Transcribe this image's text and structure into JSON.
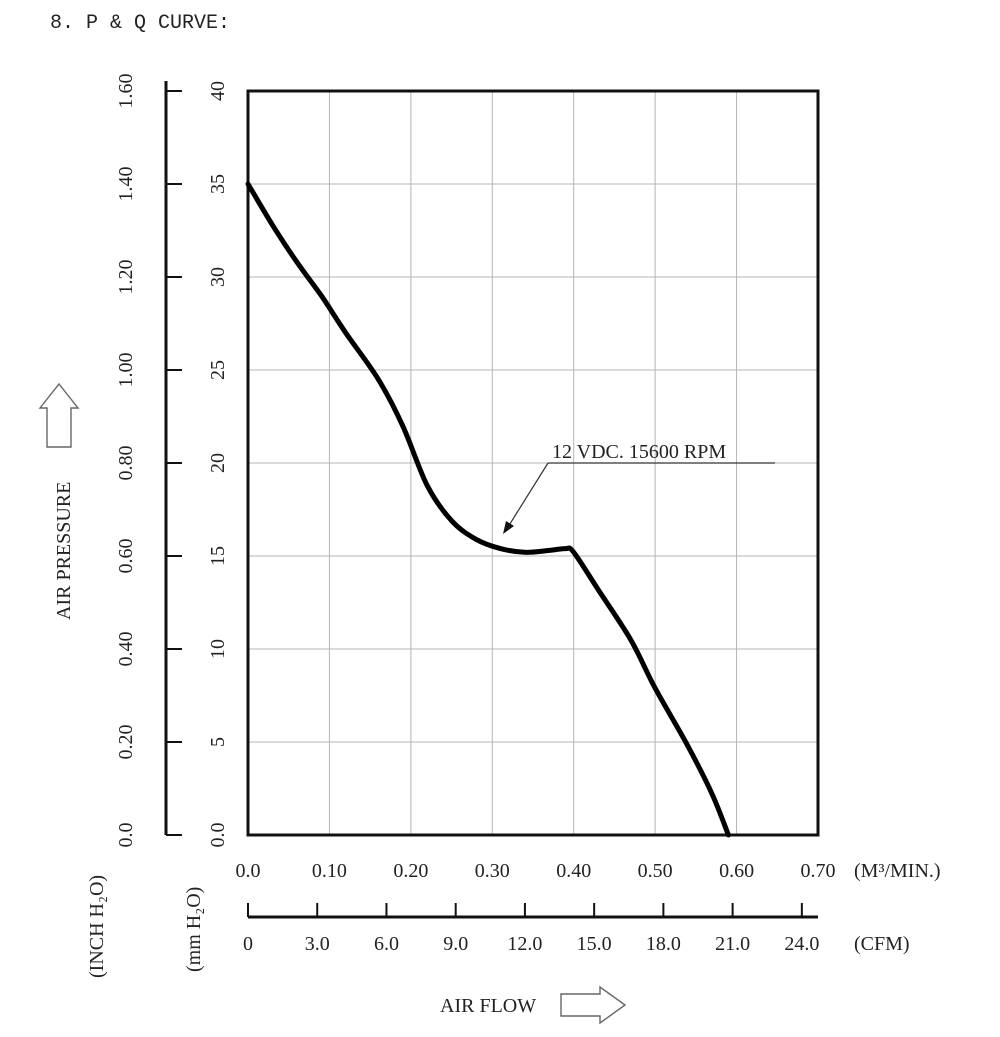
{
  "page_title": "8. P & Q CURVE:",
  "chart_data": {
    "type": "line",
    "title": "8. P & Q CURVE:",
    "ylabel": "AIR PRESSURE",
    "xlabel": "AIR FLOW",
    "y_axis_mm": {
      "unit_label": "(mm H₂O)",
      "range": [
        0,
        40
      ],
      "ticks": [
        "0.0",
        "5",
        "10",
        "15",
        "20",
        "25",
        "30",
        "35",
        "40"
      ]
    },
    "y_axis_inch": {
      "unit_label": "(INCH H₂O)",
      "range": [
        0,
        1.6
      ],
      "ticks": [
        "0.0",
        "0.20",
        "0.40",
        "0.60",
        "0.80",
        "1.00",
        "1.20",
        "1.40",
        "1.60"
      ]
    },
    "x_axis_m3": {
      "unit_label": "(M³/MIN.)",
      "range": [
        0,
        0.7
      ],
      "ticks": [
        "0.0",
        "0.10",
        "0.20",
        "0.30",
        "0.40",
        "0.50",
        "0.60",
        "0.70"
      ]
    },
    "x_axis_cfm": {
      "unit_label": "(CFM)",
      "range": [
        0,
        24.7
      ],
      "ticks": [
        "0",
        "3.0",
        "6.0",
        "9.0",
        "12.0",
        "15.0",
        "18.0",
        "21.0",
        "24.0"
      ]
    },
    "grid": true,
    "series": [
      {
        "name": "12 VDC. 15600 RPM",
        "x": [
          0.0,
          0.03,
          0.06,
          0.09,
          0.12,
          0.16,
          0.19,
          0.22,
          0.25,
          0.28,
          0.31,
          0.34,
          0.37,
          0.39,
          0.4,
          0.43,
          0.47,
          0.5,
          0.54,
          0.57,
          0.59
        ],
        "y": [
          35.0,
          32.8,
          30.8,
          29.0,
          27.0,
          24.5,
          22.0,
          18.8,
          16.9,
          15.9,
          15.4,
          15.2,
          15.3,
          15.4,
          15.2,
          13.2,
          10.5,
          7.9,
          4.8,
          2.2,
          0.0
        ]
      }
    ],
    "annotation": "12 VDC. 15600 RPM"
  }
}
